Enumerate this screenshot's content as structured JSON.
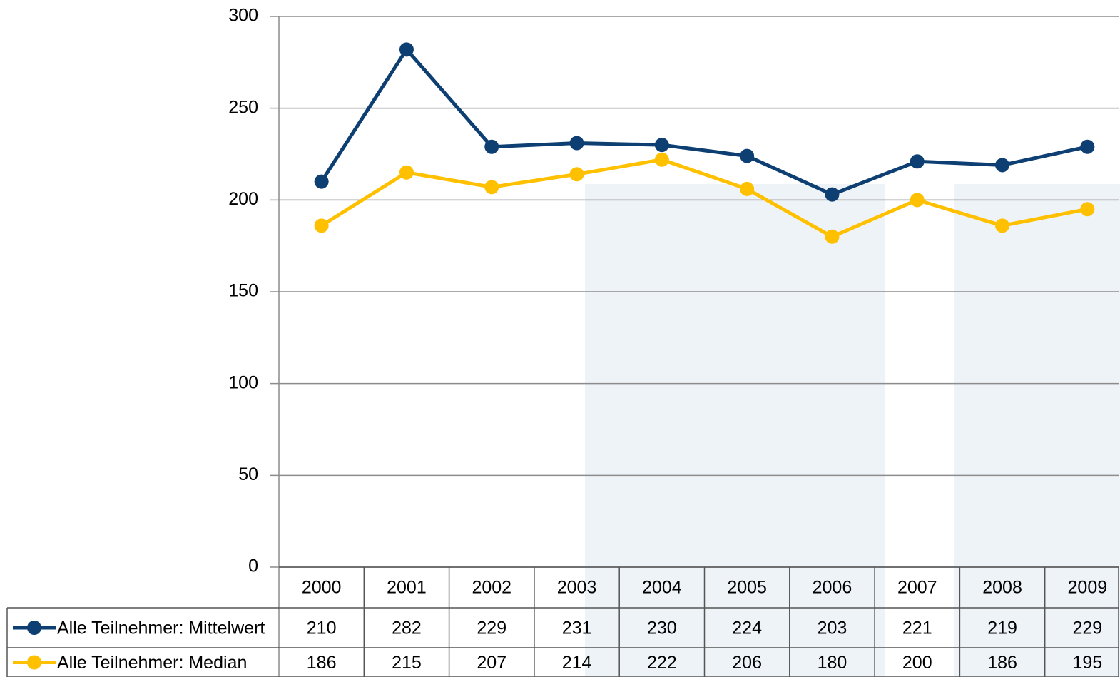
{
  "chart_data": {
    "type": "line",
    "categories": [
      "2000",
      "2001",
      "2002",
      "2003",
      "2004",
      "2005",
      "2006",
      "2007",
      "2008",
      "2009"
    ],
    "series": [
      {
        "name": "Alle Teilnehmer: Mittelwert",
        "color": "#0e3f73",
        "values": [
          210,
          282,
          229,
          231,
          230,
          224,
          203,
          221,
          219,
          229
        ]
      },
      {
        "name": "Alle Teilnehmer: Median",
        "color": "#ffc000",
        "values": [
          186,
          215,
          207,
          214,
          222,
          206,
          180,
          200,
          186,
          195
        ]
      }
    ],
    "ylim": [
      0,
      300
    ],
    "yticks": [
      0,
      50,
      100,
      150,
      200,
      250,
      300
    ],
    "grid": true
  }
}
